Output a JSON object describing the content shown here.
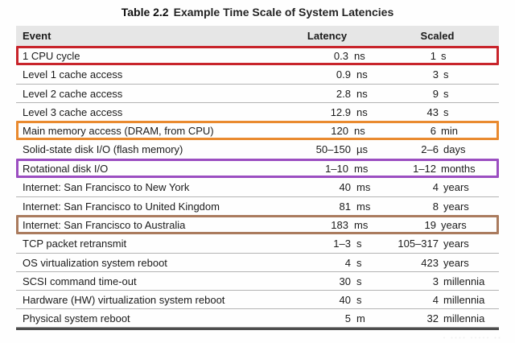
{
  "title": {
    "prefix": "Table 2.2",
    "text": "Example Time Scale of System Latencies"
  },
  "table": {
    "headers": {
      "event": "Event",
      "latency": "Latency",
      "scaled": "Scaled"
    },
    "rows": [
      {
        "event": "1 CPU cycle",
        "latency_value": "0.3",
        "latency_unit": "ns",
        "scaled_value": "1",
        "scaled_unit": "s",
        "highlight": "red"
      },
      {
        "event": "Level 1 cache access",
        "latency_value": "0.9",
        "latency_unit": "ns",
        "scaled_value": "3",
        "scaled_unit": "s",
        "highlight": null
      },
      {
        "event": "Level 2 cache access",
        "latency_value": "2.8",
        "latency_unit": "ns",
        "scaled_value": "9",
        "scaled_unit": "s",
        "highlight": null
      },
      {
        "event": "Level 3 cache access",
        "latency_value": "12.9",
        "latency_unit": "ns",
        "scaled_value": "43",
        "scaled_unit": "s",
        "highlight": null
      },
      {
        "event": "Main memory access (DRAM, from CPU)",
        "latency_value": "120",
        "latency_unit": "ns",
        "scaled_value": "6",
        "scaled_unit": "min",
        "highlight": "orange"
      },
      {
        "event": "Solid-state disk I/O (flash memory)",
        "latency_value": "50–150",
        "latency_unit": "µs",
        "scaled_value": "2–6",
        "scaled_unit": "days",
        "highlight": null
      },
      {
        "event": "Rotational disk I/O",
        "latency_value": "1–10",
        "latency_unit": "ms",
        "scaled_value": "1–12",
        "scaled_unit": "months",
        "highlight": "purple"
      },
      {
        "event": "Internet: San Francisco to New York",
        "latency_value": "40",
        "latency_unit": "ms",
        "scaled_value": "4",
        "scaled_unit": "years",
        "highlight": null
      },
      {
        "event": "Internet: San Francisco to United Kingdom",
        "latency_value": "81",
        "latency_unit": "ms",
        "scaled_value": "8",
        "scaled_unit": "years",
        "highlight": null
      },
      {
        "event": "Internet: San Francisco to Australia",
        "latency_value": "183",
        "latency_unit": "ms",
        "scaled_value": "19",
        "scaled_unit": "years",
        "highlight": "brown"
      },
      {
        "event": "TCP packet retransmit",
        "latency_value": "1–3",
        "latency_unit": "s",
        "scaled_value": "105–317",
        "scaled_unit": "years",
        "highlight": null
      },
      {
        "event": "OS virtualization system reboot",
        "latency_value": "4",
        "latency_unit": "s",
        "scaled_value": "423",
        "scaled_unit": "years",
        "highlight": null
      },
      {
        "event": "SCSI command time-out",
        "latency_value": "30",
        "latency_unit": "s",
        "scaled_value": "3",
        "scaled_unit": "millennia",
        "highlight": null
      },
      {
        "event": "Hardware (HW) virtualization system reboot",
        "latency_value": "40",
        "latency_unit": "s",
        "scaled_value": "4",
        "scaled_unit": "millennia",
        "highlight": null
      },
      {
        "event": "Physical system reboot",
        "latency_value": "5",
        "latency_unit": "m",
        "scaled_value": "32",
        "scaled_unit": "millennia",
        "highlight": null
      }
    ]
  },
  "colors": {
    "red": "#c8242b",
    "orange": "#e98a2f",
    "purple": "#9b4ec1",
    "brown": "#aa7b5e",
    "header_bg": "#e6e6e6",
    "separator": "#b3b3b3",
    "bottom_rule": "#4d4d4d"
  },
  "watermark": {
    "glyphs": "· ···· ····· ··"
  }
}
